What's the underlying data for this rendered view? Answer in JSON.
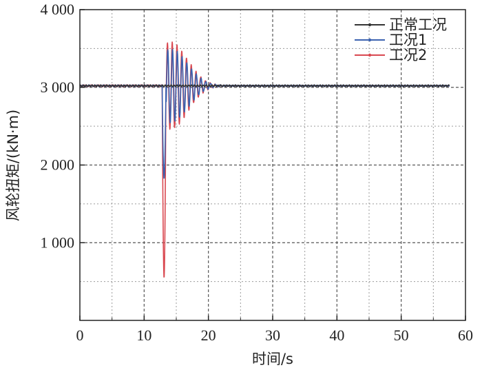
{
  "chart_data": {
    "type": "line",
    "title": "",
    "xlabel": "时间/s",
    "ylabel": "风轮扭矩/(kN·m)",
    "xlim": [
      0,
      60
    ],
    "ylim": [
      0,
      4000
    ],
    "x_ticks": [
      0,
      10,
      20,
      30,
      40,
      50,
      60
    ],
    "x_tick_labels": [
      "0",
      "10",
      "20",
      "30",
      "40",
      "50",
      "60"
    ],
    "y_ticks": [
      1000,
      2000,
      3000,
      4000
    ],
    "y_tick_labels": [
      "1 000",
      "2 000",
      "3 000",
      "4 000"
    ],
    "grid": true,
    "legend_position": "top-right",
    "series": [
      {
        "name": "正常工况",
        "color": "#333333",
        "baseline": 3020,
        "event_time": null,
        "min_value": 3000,
        "max_value": 3035,
        "end_time": 57.5
      },
      {
        "name": "工况1",
        "color": "#3a62b0",
        "baseline": 3020,
        "event_time": 12.8,
        "min_value": 1830,
        "max_value": 3550,
        "end_time": 57.5
      },
      {
        "name": "工况2",
        "color": "#d9474f",
        "baseline": 3020,
        "event_time": 12.8,
        "min_value": 550,
        "max_value": 3650,
        "end_time": 57.5
      }
    ]
  }
}
